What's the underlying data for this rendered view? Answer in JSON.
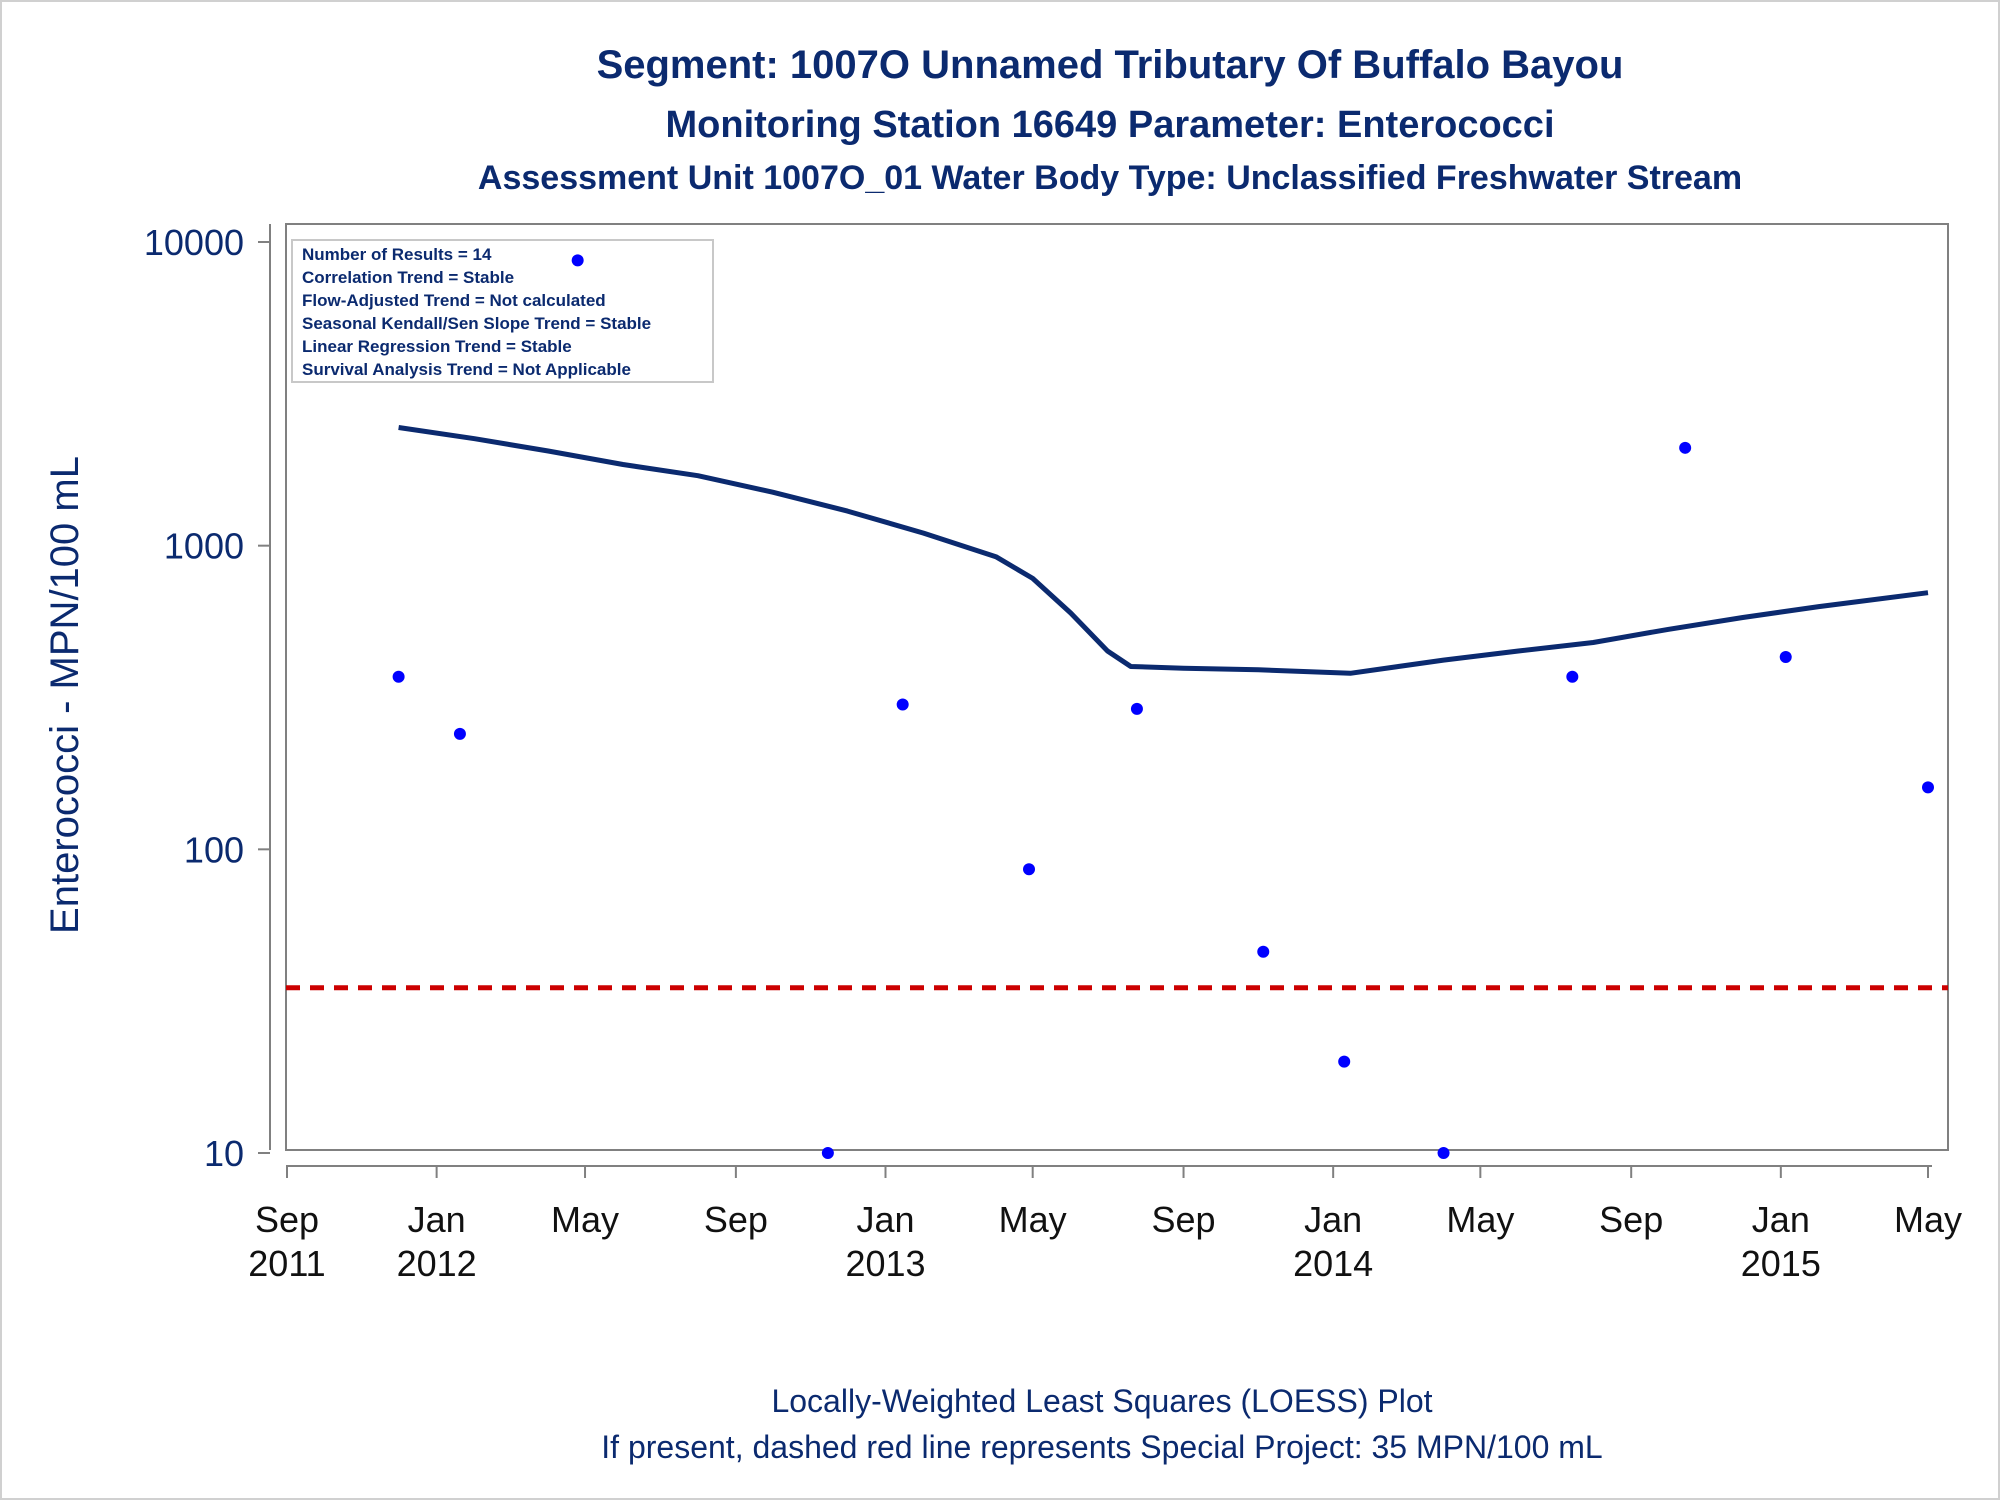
{
  "titles": {
    "line1": "Segment: 1007O  Unnamed Tributary Of Buffalo Bayou",
    "line2": "Monitoring Station 16649 Parameter: Enterococci",
    "line3": "Assessment Unit 1007O_01   Water Body Type: Unclassified Freshwater Stream"
  },
  "info_box": [
    "Number of Results = 14",
    "Correlation Trend = Stable",
    "Flow-Adjusted Trend = Not calculated",
    "Seasonal Kendall/Sen Slope Trend = Stable",
    "Linear Regression Trend = Stable",
    "Survival Analysis Trend = Not Applicable"
  ],
  "footer": {
    "line1": "Locally-Weighted Least Squares (LOESS) Plot",
    "line2": "If present, dashed red line represents Special Project: 35 MPN/100 mL"
  },
  "colors": {
    "title": "#0b2a6f",
    "points": "#0000ff",
    "loess": "#0b2a6f",
    "reference": "#cc0000",
    "axis": "#808080"
  },
  "chart_data": {
    "type": "scatter",
    "ylabel": "Enterococci - MPN/100 mL",
    "xlabel": "",
    "y_scale": "log",
    "ylim": [
      10,
      10000
    ],
    "xlim": [
      "2011-09-01",
      "2015-05-01"
    ],
    "y_ticks": [
      10,
      100,
      1000,
      10000
    ],
    "x_ticks": [
      {
        "date": "2011-09-01",
        "month": "Sep",
        "year": "2011"
      },
      {
        "date": "2012-01-01",
        "month": "Jan",
        "year": "2012"
      },
      {
        "date": "2012-05-01",
        "month": "May",
        "year": ""
      },
      {
        "date": "2012-09-01",
        "month": "Sep",
        "year": ""
      },
      {
        "date": "2013-01-01",
        "month": "Jan",
        "year": "2013"
      },
      {
        "date": "2013-05-01",
        "month": "May",
        "year": ""
      },
      {
        "date": "2013-09-01",
        "month": "Sep",
        "year": ""
      },
      {
        "date": "2014-01-01",
        "month": "Jan",
        "year": "2014"
      },
      {
        "date": "2014-05-01",
        "month": "May",
        "year": ""
      },
      {
        "date": "2014-09-01",
        "month": "Sep",
        "year": ""
      },
      {
        "date": "2015-01-01",
        "month": "Jan",
        "year": "2015"
      },
      {
        "date": "2015-05-01",
        "month": "May",
        "year": ""
      }
    ],
    "points": [
      {
        "x": "2011-12-01",
        "y": 370
      },
      {
        "x": "2012-01-20",
        "y": 240
      },
      {
        "x": "2012-04-25",
        "y": 8700
      },
      {
        "x": "2012-11-15",
        "y": 10
      },
      {
        "x": "2013-01-15",
        "y": 300
      },
      {
        "x": "2013-04-28",
        "y": 86
      },
      {
        "x": "2013-07-25",
        "y": 290
      },
      {
        "x": "2013-11-05",
        "y": 46
      },
      {
        "x": "2014-01-10",
        "y": 20
      },
      {
        "x": "2014-04-01",
        "y": 10
      },
      {
        "x": "2014-07-15",
        "y": 370
      },
      {
        "x": "2014-10-15",
        "y": 2100
      },
      {
        "x": "2015-01-05",
        "y": 430
      },
      {
        "x": "2015-05-01",
        "y": 160
      }
    ],
    "loess": [
      {
        "x": "2011-12-01",
        "y": 2450
      },
      {
        "x": "2012-02-01",
        "y": 2250
      },
      {
        "x": "2012-04-01",
        "y": 2050
      },
      {
        "x": "2012-06-01",
        "y": 1850
      },
      {
        "x": "2012-08-01",
        "y": 1700
      },
      {
        "x": "2012-10-01",
        "y": 1500
      },
      {
        "x": "2012-12-01",
        "y": 1300
      },
      {
        "x": "2013-02-01",
        "y": 1100
      },
      {
        "x": "2013-04-01",
        "y": 920
      },
      {
        "x": "2013-05-01",
        "y": 780
      },
      {
        "x": "2013-06-01",
        "y": 600
      },
      {
        "x": "2013-07-01",
        "y": 450
      },
      {
        "x": "2013-07-20",
        "y": 400
      },
      {
        "x": "2013-09-01",
        "y": 395
      },
      {
        "x": "2013-11-01",
        "y": 390
      },
      {
        "x": "2014-01-15",
        "y": 380
      },
      {
        "x": "2014-04-01",
        "y": 420
      },
      {
        "x": "2014-06-01",
        "y": 450
      },
      {
        "x": "2014-08-01",
        "y": 480
      },
      {
        "x": "2014-10-01",
        "y": 530
      },
      {
        "x": "2014-12-01",
        "y": 580
      },
      {
        "x": "2015-02-01",
        "y": 630
      },
      {
        "x": "2015-05-01",
        "y": 700
      }
    ],
    "reference_line": {
      "y": 35,
      "style": "dashed"
    }
  }
}
